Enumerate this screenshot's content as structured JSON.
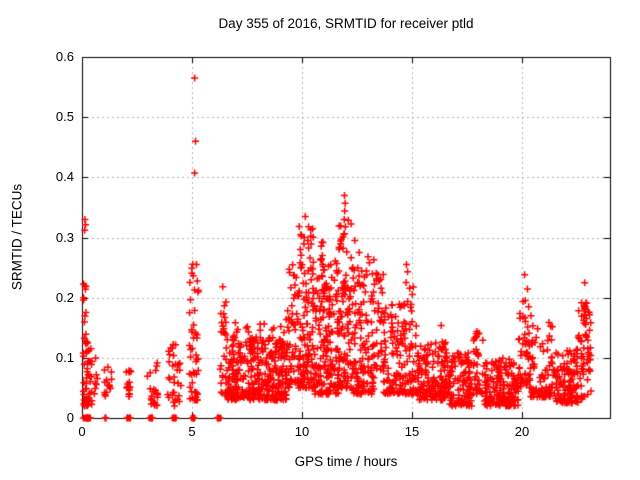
{
  "chart_data": {
    "type": "scatter",
    "title": "Day 355 of 2016, SRMTID for receiver ptld",
    "xlabel": "GPS time / hours",
    "ylabel": "SRMTID / TECUs",
    "xlim": [
      0,
      24
    ],
    "ylim": [
      0,
      0.6
    ],
    "xticks": [
      0,
      5,
      10,
      15,
      20
    ],
    "yticks": [
      0,
      0.1,
      0.2,
      0.3,
      0.4,
      0.5,
      0.6
    ],
    "grid": true,
    "grid_color": "#b5b5b5",
    "border_color": "#000000",
    "marker": {
      "shape": "plus",
      "color": "#ff0000",
      "size": 7
    },
    "legend": "none",
    "series": [
      {
        "name": "SRMTID",
        "bands": [
          {
            "x0": 0.05,
            "x1": 0.45,
            "y0": 0.02,
            "y1": 0.145,
            "n": 55,
            "skew": 1.8
          },
          {
            "x0": 0.06,
            "x1": 0.2,
            "y0": 0.145,
            "y1": 0.235,
            "n": 9,
            "skew": 1.2
          },
          {
            "x0": 0.5,
            "x1": 0.7,
            "y0": 0.04,
            "y1": 0.1,
            "n": 7,
            "skew": 1.5
          },
          {
            "x0": 1.0,
            "x1": 1.35,
            "y0": 0.035,
            "y1": 0.085,
            "n": 14,
            "skew": 1.3
          },
          {
            "x0": 1.95,
            "x1": 2.25,
            "y0": 0.035,
            "y1": 0.09,
            "n": 16,
            "skew": 1.3
          },
          {
            "x0": 2.95,
            "x1": 3.45,
            "y0": 0.02,
            "y1": 0.1,
            "n": 22,
            "skew": 1.4
          },
          {
            "x0": 3.9,
            "x1": 4.5,
            "y0": 0.02,
            "y1": 0.125,
            "n": 32,
            "skew": 1.5
          },
          {
            "x0": 4.88,
            "x1": 5.3,
            "y0": 0.03,
            "y1": 0.26,
            "n": 48,
            "skew": 1.9
          },
          {
            "x0": 6.28,
            "x1": 6.55,
            "y0": 0.04,
            "y1": 0.22,
            "n": 26,
            "skew": 1.6
          },
          {
            "x0": 6.55,
            "x1": 9.35,
            "y0": 0.03,
            "y1": 0.135,
            "n": 340,
            "skew": 1.8
          },
          {
            "x0": 6.6,
            "x1": 9.3,
            "y0": 0.13,
            "y1": 0.165,
            "n": 22,
            "skew": 1.2
          },
          {
            "x0": 9.35,
            "x1": 9.85,
            "y0": 0.05,
            "y1": 0.27,
            "n": 55,
            "skew": 1.8
          },
          {
            "x0": 9.85,
            "x1": 10.55,
            "y0": 0.05,
            "y1": 0.33,
            "n": 120,
            "skew": 2.0
          },
          {
            "x0": 10.55,
            "x1": 11.65,
            "y0": 0.04,
            "y1": 0.27,
            "n": 170,
            "skew": 1.9
          },
          {
            "x0": 10.82,
            "x1": 11.02,
            "y0": 0.18,
            "y1": 0.295,
            "n": 10,
            "skew": 1.2
          },
          {
            "x0": 11.65,
            "x1": 12.25,
            "y0": 0.05,
            "y1": 0.33,
            "n": 95,
            "skew": 1.7
          },
          {
            "x0": 12.25,
            "x1": 13.3,
            "y0": 0.04,
            "y1": 0.27,
            "n": 135,
            "skew": 1.8
          },
          {
            "x0": 13.3,
            "x1": 13.7,
            "y0": 0.08,
            "y1": 0.245,
            "n": 30,
            "skew": 1.5
          },
          {
            "x0": 13.7,
            "x1": 14.6,
            "y0": 0.04,
            "y1": 0.19,
            "n": 95,
            "skew": 1.7
          },
          {
            "x0": 14.6,
            "x1": 15.25,
            "y0": 0.04,
            "y1": 0.235,
            "n": 60,
            "skew": 1.8
          },
          {
            "x0": 15.25,
            "x1": 16.7,
            "y0": 0.03,
            "y1": 0.125,
            "n": 150,
            "skew": 1.6
          },
          {
            "x0": 16.3,
            "x1": 16.6,
            "y0": 0.1,
            "y1": 0.155,
            "n": 10,
            "skew": 1.2
          },
          {
            "x0": 16.7,
            "x1": 17.75,
            "y0": 0.02,
            "y1": 0.115,
            "n": 105,
            "skew": 1.6
          },
          {
            "x0": 17.78,
            "x1": 18.22,
            "y0": 0.04,
            "y1": 0.158,
            "n": 36,
            "skew": 1.5
          },
          {
            "x0": 18.25,
            "x1": 19.85,
            "y0": 0.02,
            "y1": 0.1,
            "n": 165,
            "skew": 1.6
          },
          {
            "x0": 19.85,
            "x1": 20.35,
            "y0": 0.05,
            "y1": 0.215,
            "n": 48,
            "skew": 1.6
          },
          {
            "x0": 20.35,
            "x1": 21.5,
            "y0": 0.035,
            "y1": 0.17,
            "n": 95,
            "skew": 1.9
          },
          {
            "x0": 21.5,
            "x1": 22.55,
            "y0": 0.025,
            "y1": 0.115,
            "n": 110,
            "skew": 1.7
          },
          {
            "x0": 22.55,
            "x1": 23.15,
            "y0": 0.03,
            "y1": 0.2,
            "n": 52,
            "skew": 1.3
          },
          {
            "x0": 22.7,
            "x1": 22.98,
            "y0": 0.155,
            "y1": 0.195,
            "n": 14,
            "skew": 1.0
          }
        ],
        "outliers": [
          [
            0.13,
            0.33
          ],
          [
            0.16,
            0.321
          ],
          [
            0.12,
            0.312
          ],
          [
            5.12,
            0.565
          ],
          [
            5.16,
            0.46
          ],
          [
            5.12,
            0.407
          ],
          [
            9.95,
            0.305
          ],
          [
            10.15,
            0.335
          ],
          [
            10.3,
            0.318
          ],
          [
            10.9,
            0.292
          ],
          [
            11.93,
            0.37
          ],
          [
            11.96,
            0.357
          ],
          [
            11.94,
            0.344
          ],
          [
            11.92,
            0.33
          ],
          [
            11.97,
            0.318
          ],
          [
            11.9,
            0.305
          ],
          [
            12.4,
            0.295
          ],
          [
            12.6,
            0.275
          ],
          [
            13.0,
            0.268
          ],
          [
            13.45,
            0.238
          ],
          [
            13.5,
            0.228
          ],
          [
            14.75,
            0.255
          ],
          [
            14.8,
            0.243
          ],
          [
            20.12,
            0.238
          ],
          [
            22.85,
            0.225
          ],
          [
            6.4,
            0.218
          ]
        ],
        "zero_runs": [
          {
            "x0": 0.05,
            "x1": 0.38,
            "n": 10
          },
          {
            "x0": 1.04,
            "x1": 1.1,
            "n": 2
          },
          {
            "x0": 2.05,
            "x1": 2.2,
            "n": 4
          },
          {
            "x0": 3.05,
            "x1": 3.2,
            "n": 4
          },
          {
            "x0": 4.1,
            "x1": 4.27,
            "n": 4
          },
          {
            "x0": 4.98,
            "x1": 5.12,
            "n": 4
          },
          {
            "x0": 6.15,
            "x1": 6.32,
            "n": 4
          }
        ]
      }
    ]
  }
}
